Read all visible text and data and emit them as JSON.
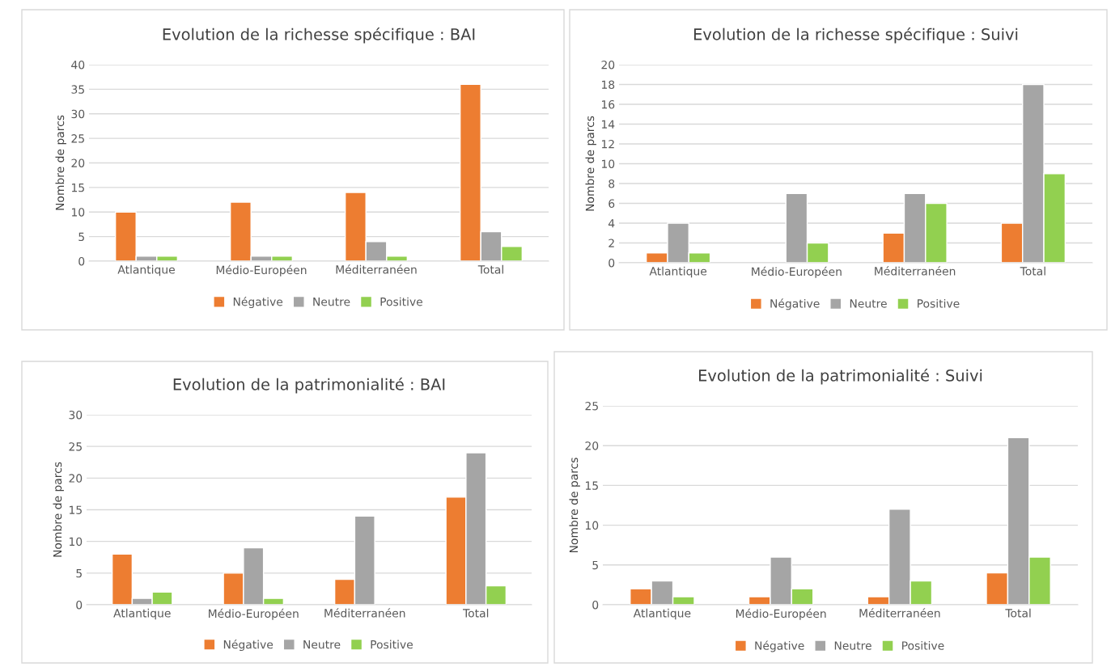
{
  "chart_data": [
    {
      "type": "bar",
      "title": "Evolution de la richesse spécifique : BAI",
      "ylabel": "Nombre de parcs",
      "categories": [
        "Atlantique",
        "Médio-Européen",
        "Méditerranéen",
        "Total"
      ],
      "ylim": [
        0,
        40
      ],
      "yticks": [
        0,
        5,
        10,
        15,
        20,
        25,
        30,
        35,
        40
      ],
      "grid": "y",
      "legend": "bottom",
      "series": [
        {
          "name": "Négative",
          "color": "#ed7d31",
          "values": [
            10,
            12,
            14,
            36
          ]
        },
        {
          "name": "Neutre",
          "color": "#a5a5a5",
          "values": [
            1,
            1,
            4,
            6
          ]
        },
        {
          "name": "Positive",
          "color": "#92d050",
          "values": [
            1,
            1,
            1,
            3
          ]
        }
      ]
    },
    {
      "type": "bar",
      "title": "Evolution de la richesse spécifique : Suivi",
      "ylabel": "Nombre de parcs",
      "categories": [
        "Atlantique",
        "Médio-Européen",
        "Méditerranéen",
        "Total"
      ],
      "ylim": [
        0,
        20
      ],
      "yticks": [
        0,
        2,
        4,
        6,
        8,
        10,
        12,
        14,
        16,
        18,
        20
      ],
      "grid": "y",
      "legend": "bottom",
      "series": [
        {
          "name": "Négative",
          "color": "#ed7d31",
          "values": [
            1,
            null,
            3,
            4
          ]
        },
        {
          "name": "Neutre",
          "color": "#a5a5a5",
          "values": [
            4,
            7,
            7,
            18
          ]
        },
        {
          "name": "Positive",
          "color": "#92d050",
          "values": [
            1,
            2,
            6,
            9
          ]
        }
      ]
    },
    {
      "type": "bar",
      "title": "Evolution de la patrimonialité : BAI",
      "ylabel": "Nombre de parcs",
      "categories": [
        "Atlantique",
        "Médio-Européen",
        "Méditerranéen",
        "Total"
      ],
      "ylim": [
        0,
        30
      ],
      "yticks": [
        0,
        5,
        10,
        15,
        20,
        25,
        30
      ],
      "grid": "y",
      "legend": "bottom",
      "series": [
        {
          "name": "Négative",
          "color": "#ed7d31",
          "values": [
            8,
            5,
            4,
            17
          ]
        },
        {
          "name": "Neutre",
          "color": "#a5a5a5",
          "values": [
            1,
            9,
            14,
            24
          ]
        },
        {
          "name": "Positive",
          "color": "#92d050",
          "values": [
            2,
            1,
            null,
            3
          ]
        }
      ]
    },
    {
      "type": "bar",
      "title": "Evolution de la patrimonialité : Suivi",
      "ylabel": "Nombre de parcs",
      "categories": [
        "Atlantique",
        "Médio-Européen",
        "Méditerranéen",
        "Total"
      ],
      "ylim": [
        0,
        25
      ],
      "yticks": [
        0,
        5,
        10,
        15,
        20,
        25
      ],
      "grid": "y",
      "legend": "bottom",
      "series": [
        {
          "name": "Négative",
          "color": "#ed7d31",
          "values": [
            2,
            1,
            1,
            4
          ]
        },
        {
          "name": "Neutre",
          "color": "#a5a5a5",
          "values": [
            3,
            6,
            12,
            21
          ]
        },
        {
          "name": "Positive",
          "color": "#92d050",
          "values": [
            1,
            2,
            3,
            6
          ]
        }
      ]
    }
  ]
}
